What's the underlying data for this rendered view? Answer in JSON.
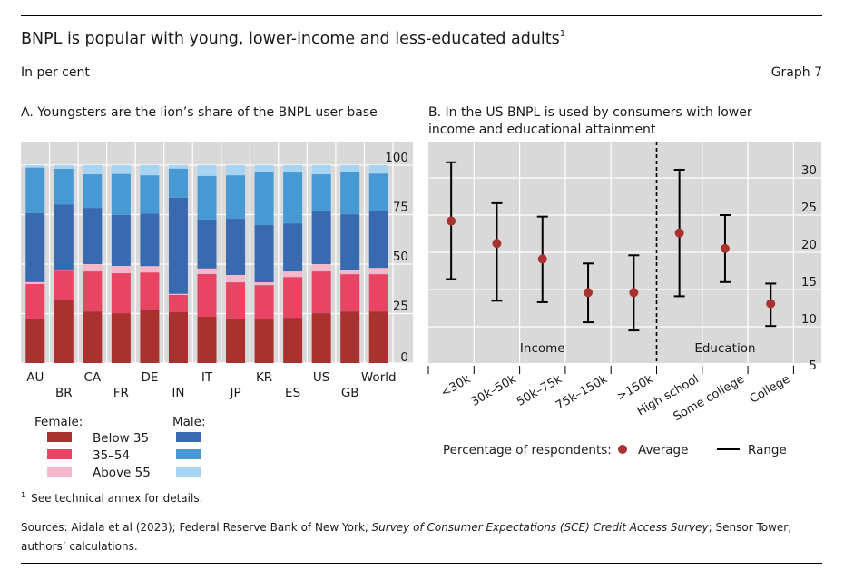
{
  "header": {
    "title": "BNPL is popular with young, lower-income and less-educated adults",
    "title_footnote_mark": "1",
    "unit": "In per cent",
    "graph_number": "Graph 7"
  },
  "footer": {
    "footnote_mark": "1",
    "footnote": "See technical annex for details.",
    "sources_prefix": "Sources: Aidala et al (2023); Federal Reserve Bank of New York, ",
    "sources_italic": "Survey of Consumer Expectations (SCE) Credit Access Survey",
    "sources_suffix": "; Sensor Tower; authors’ calculations."
  },
  "colors": {
    "female_below35": "#A93130",
    "female_35_54": "#E84463",
    "female_above55": "#F5B8CB",
    "male_below35": "#3969AE",
    "male_35_54": "#4699D2",
    "male_above55": "#A7D4F2",
    "plot_bg": "#D9D9D9",
    "gridline": "#FFFFFF",
    "marker": "#A93130",
    "range": "#000000"
  },
  "chart_data": [
    {
      "panel": "A",
      "type": "bar",
      "stacked": true,
      "title": "A. Youngsters are the lion’s share of the BNPL user base",
      "xlabel": "",
      "ylabel": "",
      "ylim": [
        0,
        100
      ],
      "yticks": [
        0,
        25,
        50,
        75,
        100
      ],
      "y_axis_side": "right",
      "grid": true,
      "categories": [
        "AU",
        "BR",
        "CA",
        "FR",
        "DE",
        "IN",
        "IT",
        "JP",
        "KR",
        "ES",
        "US",
        "GB",
        "World"
      ],
      "series": [
        {
          "name": "Female: Below 35",
          "color_key": "female_below35",
          "values": [
            22.5,
            31.7,
            26.1,
            25.2,
            27.0,
            25.7,
            23.4,
            22.5,
            22.0,
            22.9,
            25.2,
            26.1,
            26.1
          ]
        },
        {
          "name": "Female: 35–54",
          "color_key": "female_35_54",
          "values": [
            17.4,
            15.0,
            20.2,
            20.2,
            18.8,
            8.7,
            21.6,
            18.3,
            17.4,
            20.6,
            21.1,
            18.8,
            18.8
          ]
        },
        {
          "name": "Female: Above 55",
          "color_key": "female_above55",
          "values": [
            1.0,
            0.5,
            3.7,
            3.7,
            3.2,
            0.6,
            2.8,
            3.7,
            1.4,
            2.8,
            3.7,
            2.3,
            3.2
          ]
        },
        {
          "name": "Male: Below 35",
          "color_key": "male_below35",
          "values": [
            34.9,
            33.0,
            28.4,
            25.7,
            26.6,
            48.6,
            24.8,
            28.4,
            28.9,
            24.3,
            27.1,
            28.0,
            28.9
          ]
        },
        {
          "name": "Male: 35–54",
          "color_key": "male_35_54",
          "values": [
            23.0,
            18.0,
            17.0,
            20.8,
            19.3,
            14.7,
            22.0,
            22.0,
            27.0,
            25.7,
            18.3,
            21.6,
            18.8
          ]
        },
        {
          "name": "Male: Above 55",
          "color_key": "male_above55",
          "values": [
            1.2,
            1.8,
            4.6,
            4.4,
            5.1,
            1.7,
            5.4,
            5.1,
            3.3,
            3.7,
            4.6,
            3.2,
            4.2
          ]
        }
      ],
      "legend": {
        "position": "bottom-left",
        "female_header": "Female:",
        "male_header": "Male:",
        "rows": [
          "Below 35",
          "35–54",
          "Above 55"
        ]
      }
    },
    {
      "panel": "B",
      "type": "scatter",
      "subtype": "range-dot",
      "title": "B. In the US BNPL is used by consumers with lower income and educational attainment",
      "xlabel": "",
      "ylabel": "",
      "ylim": [
        5,
        32.5
      ],
      "yticks": [
        5,
        10,
        15,
        20,
        25,
        30
      ],
      "y_axis_side": "right",
      "grid": true,
      "categories": [
        "<30k",
        "30k–50k",
        "50k–75k",
        "75k–150k",
        ">150k",
        "High school",
        "Some college",
        "College"
      ],
      "groups": [
        {
          "label": "Income",
          "categories": [
            "<30k",
            "30k–50k",
            "50k–75k",
            "75k–150k",
            ">150k"
          ]
        },
        {
          "label": "Education",
          "categories": [
            "High school",
            "Some college",
            "College"
          ]
        }
      ],
      "series": [
        {
          "name": "Average",
          "values": [
            24.2,
            21.2,
            19.1,
            14.6,
            14.6,
            22.6,
            20.5,
            13.1
          ]
        },
        {
          "name": "Range low",
          "values": [
            16.4,
            13.5,
            13.3,
            10.6,
            9.5,
            14.1,
            16.0,
            10.1
          ]
        },
        {
          "name": "Range high",
          "values": [
            32.1,
            26.6,
            24.8,
            18.5,
            19.6,
            31.1,
            25.0,
            15.8
          ]
        }
      ],
      "legend": {
        "position": "bottom",
        "prefix": "Percentage of respondents:",
        "average_label": "Average",
        "range_label": "Range"
      }
    }
  ]
}
